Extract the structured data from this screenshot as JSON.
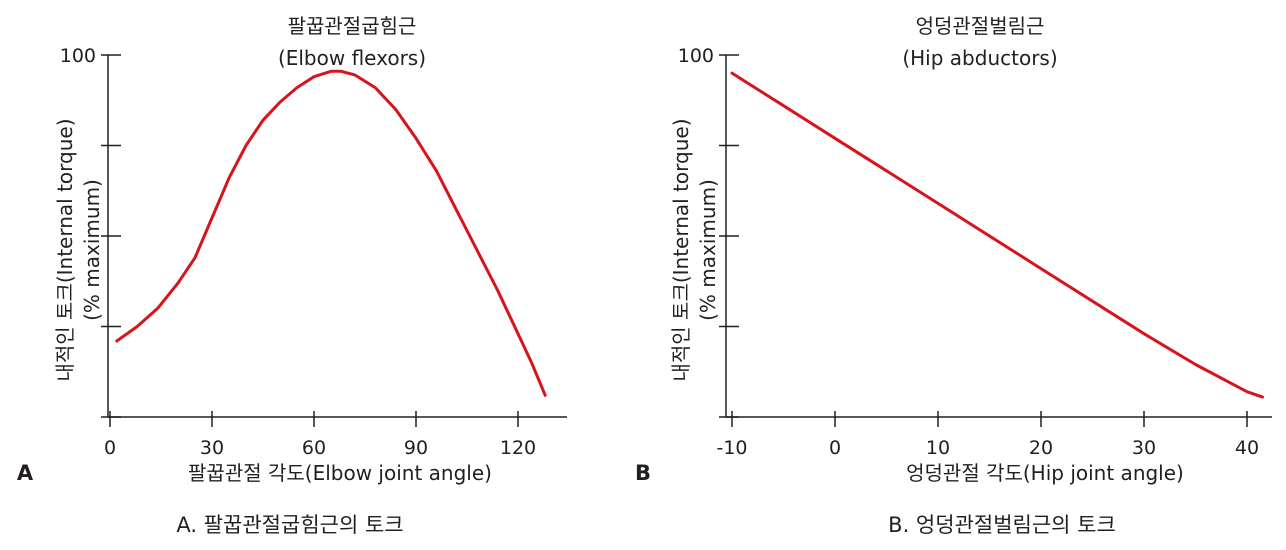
{
  "chart_data": [
    {
      "type": "line",
      "panel_letter": "A",
      "title": "팔꿉관절굽힘근",
      "subtitle": "(Elbow flexors)",
      "xlabel": "팔꿉관절 각도(Elbow joint angle)",
      "ylabel": "내적인 토크(Internal torque)",
      "ylabel2": "(% maximum)",
      "xlim": [
        0,
        130
      ],
      "ylim": [
        0,
        100
      ],
      "x_ticks": [
        0,
        30,
        60,
        90,
        120
      ],
      "x_tick_labels": [
        "0",
        "30",
        "60",
        "90",
        "120"
      ],
      "y_ticks": [
        0,
        25,
        50,
        75,
        100
      ],
      "y_tick_labels": [
        "",
        "",
        "",
        "",
        "100"
      ],
      "grid": false,
      "line_color": "#d7141c",
      "series": [
        {
          "x": [
            2,
            8,
            14,
            20,
            25,
            30,
            35,
            40,
            45,
            50,
            55,
            60,
            65,
            68,
            72,
            78,
            84,
            90,
            96,
            102,
            108,
            114,
            120,
            124,
            128
          ],
          "y": [
            21,
            25,
            30,
            37,
            44,
            55,
            66,
            75,
            82,
            87,
            91,
            94,
            95.5,
            95.5,
            94.5,
            91,
            85,
            77,
            68,
            57,
            46,
            35,
            23,
            15,
            6
          ]
        }
      ],
      "caption": "A. 팔꿉관절굽힘근의 토크"
    },
    {
      "type": "line",
      "panel_letter": "B",
      "title": "엉덩관절벌림근",
      "subtitle": "(Hip abductors)",
      "xlabel": "엉덩관절 각도(Hip joint angle)",
      "ylabel": "내적인 토크(Internal torque)",
      "ylabel2": "(% maximum)",
      "xlim": [
        -10,
        43
      ],
      "ylim": [
        0,
        100
      ],
      "x_ticks": [
        -10,
        0,
        10,
        20,
        30,
        40
      ],
      "x_tick_labels": [
        "-10",
        "0",
        "10",
        "20",
        "30",
        "40"
      ],
      "y_ticks": [
        0,
        25,
        50,
        75,
        100
      ],
      "y_tick_labels": [
        "",
        "",
        "",
        "",
        "100"
      ],
      "grid": false,
      "line_color": "#d7141c",
      "series": [
        {
          "x": [
            -10,
            -5,
            0,
            5,
            10,
            15,
            20,
            25,
            30,
            35,
            40,
            41.5
          ],
          "y": [
            95,
            86,
            77,
            68,
            59,
            50,
            41,
            32,
            23,
            14.5,
            7,
            5.5
          ]
        }
      ],
      "caption": "B. 엉덩관절벌림근의 토크"
    }
  ]
}
